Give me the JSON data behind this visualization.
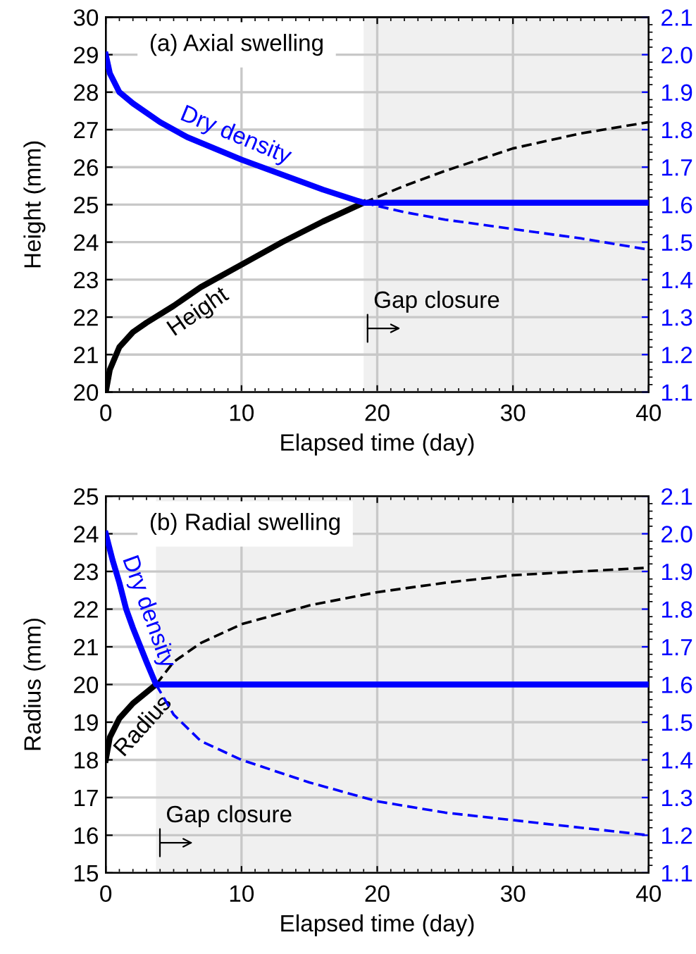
{
  "chart_data": [
    {
      "type": "line",
      "xlabel": "Elapsed time (day)",
      "ylabel": "Height (mm)",
      "xlim": [
        0,
        40
      ],
      "xticks": [
        0,
        10,
        20,
        30,
        40
      ],
      "ylim": [
        20,
        30
      ],
      "yticks": [
        20,
        21,
        22,
        23,
        24,
        25,
        26,
        27,
        28,
        29,
        30
      ],
      "y2lim": [
        1.1,
        2.1
      ],
      "y2ticks": [
        1.1,
        1.2,
        1.3,
        1.4,
        1.5,
        1.6,
        1.7,
        1.8,
        1.9,
        {
          "value": 2,
          "label": "2.0"
        },
        2.1
      ],
      "grid": true,
      "bands": [
        {
          "axis": "x",
          "from": 19,
          "to": 40,
          "color": "#f0f0f0"
        }
      ],
      "annotations": [
        "(a) Axial swelling",
        {
          "text": "Gap closure",
          "x": 19,
          "y": 21.7
        }
      ],
      "series": [
        {
          "name": "Height",
          "color": "#000000",
          "line_style": "solid",
          "x": [
            0,
            0.3,
            1,
            2,
            3,
            5,
            7,
            10,
            13,
            16,
            19
          ],
          "values": [
            20,
            20.6,
            21.2,
            21.6,
            21.85,
            22.3,
            22.8,
            23.4,
            24.0,
            24.55,
            25.05
          ]
        },
        {
          "color": "#000000",
          "line_style": "dashed",
          "x": [
            19,
            22,
            25,
            30,
            35,
            40
          ],
          "values": [
            25.05,
            25.5,
            25.9,
            26.5,
            26.9,
            27.2
          ]
        },
        {
          "name": "Dry density",
          "color": "#0000ff",
          "line_style": "solid",
          "axis": "y2",
          "x": [
            0,
            0.3,
            1,
            2,
            4,
            6,
            8,
            10,
            13,
            16,
            19,
            40
          ],
          "values": [
            2.0,
            1.95,
            1.9,
            1.87,
            1.82,
            1.78,
            1.75,
            1.72,
            1.68,
            1.64,
            1.605,
            1.605
          ]
        },
        {
          "color": "#0000ff",
          "line_style": "dashed",
          "axis": "y2",
          "x": [
            19,
            22,
            25,
            30,
            35,
            40
          ],
          "values": [
            1.605,
            1.58,
            1.56,
            1.535,
            1.51,
            1.48
          ]
        }
      ]
    },
    {
      "type": "line",
      "xlabel": "Elapsed time (day)",
      "ylabel": "Radius (mm)",
      "xlim": [
        0,
        40
      ],
      "xticks": [
        0,
        10,
        20,
        30,
        40
      ],
      "ylim": [
        15,
        25
      ],
      "yticks": [
        15,
        16,
        17,
        18,
        19,
        20,
        21,
        22,
        23,
        24,
        25
      ],
      "y2lim": [
        1.1,
        2.1
      ],
      "y2ticks": [
        1.1,
        1.2,
        1.3,
        1.4,
        1.5,
        1.6,
        1.7,
        1.8,
        1.9,
        {
          "value": 2,
          "label": "2.0"
        },
        2.1
      ],
      "grid": true,
      "bands": [
        {
          "axis": "x",
          "from": 3.7,
          "to": 40,
          "color": "#f0f0f0"
        }
      ],
      "annotations": [
        "(b) Radial swelling",
        {
          "text": "Gap closure",
          "x": 3.7,
          "y": 15.8
        }
      ],
      "series": [
        {
          "name": "Radius",
          "color": "#000000",
          "line_style": "solid",
          "x": [
            0,
            0.3,
            1,
            2,
            3.7
          ],
          "values": [
            18,
            18.6,
            19.1,
            19.5,
            20.0
          ]
        },
        {
          "color": "#000000",
          "line_style": "dashed",
          "x": [
            3.7,
            5,
            7,
            10,
            15,
            20,
            25,
            30,
            35,
            40
          ],
          "values": [
            20,
            20.6,
            21.1,
            21.6,
            22.1,
            22.45,
            22.7,
            22.9,
            23.0,
            23.1
          ]
        },
        {
          "name": "Dry density",
          "color": "#0000ff",
          "line_style": "solid",
          "axis": "y2",
          "x": [
            0,
            0.5,
            1,
            1.5,
            2,
            3,
            3.7,
            40
          ],
          "values": [
            2.0,
            1.93,
            1.87,
            1.8,
            1.75,
            1.66,
            1.6,
            1.6
          ]
        },
        {
          "color": "#0000ff",
          "line_style": "dashed",
          "axis": "y2",
          "x": [
            3.7,
            5,
            7,
            10,
            15,
            20,
            25,
            30,
            35,
            40
          ],
          "values": [
            1.6,
            1.52,
            1.45,
            1.4,
            1.34,
            1.29,
            1.26,
            1.24,
            1.22,
            1.2
          ]
        }
      ]
    }
  ]
}
